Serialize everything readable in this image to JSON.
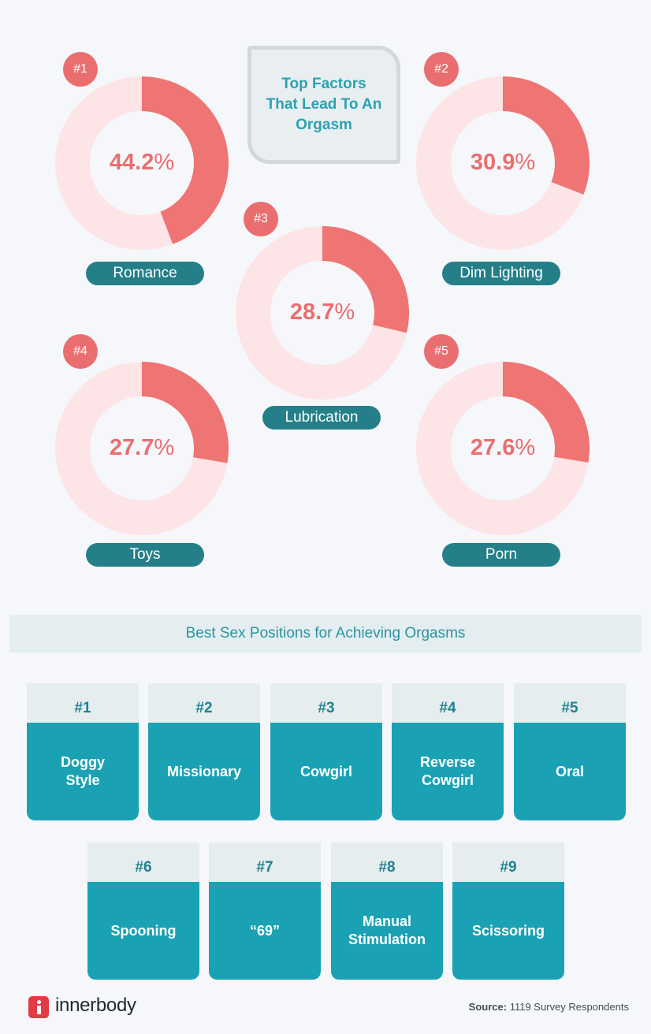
{
  "header": {
    "title": "Top Factors That Lead To An Orgasm"
  },
  "colors": {
    "donut_fill": "#ef7474",
    "donut_track": "#fde4e7",
    "pct_text": "#ea6e70",
    "pill": "#247f89",
    "position_card": "#1aa2b4"
  },
  "chart_data": [
    {
      "type": "pie",
      "title": "Top Factors That Lead To An Orgasm",
      "series": [
        {
          "rank": "#1",
          "name": "Romance",
          "value": 44.2,
          "pct_label": "44.2"
        },
        {
          "rank": "#2",
          "name": "Dim Lighting",
          "value": 30.9,
          "pct_label": "30.9"
        },
        {
          "rank": "#3",
          "name": "Lubrication",
          "value": 28.7,
          "pct_label": "28.7"
        },
        {
          "rank": "#4",
          "name": "Toys",
          "value": 27.7,
          "pct_label": "27.7"
        },
        {
          "rank": "#5",
          "name": "Porn",
          "value": 27.6,
          "pct_label": "27.6"
        }
      ],
      "unit": "%"
    },
    {
      "type": "table",
      "title": "Best Sex Positions for Achieving Orgasms",
      "rows": [
        {
          "rank": "#1",
          "name": "Doggy\nStyle"
        },
        {
          "rank": "#2",
          "name": "Missionary"
        },
        {
          "rank": "#3",
          "name": "Cowgirl"
        },
        {
          "rank": "#4",
          "name": "Reverse\nCowgirl"
        },
        {
          "rank": "#5",
          "name": "Oral"
        },
        {
          "rank": "#6",
          "name": "Spooning"
        },
        {
          "rank": "#7",
          "name": "“69”"
        },
        {
          "rank": "#8",
          "name": "Manual\nStimulation"
        },
        {
          "rank": "#9",
          "name": "Scissoring"
        }
      ]
    }
  ],
  "positions": {
    "heading": "Best Sex Positions for Achieving Orgasms"
  },
  "footer": {
    "logo_text": "innerbody",
    "logo_icon": "info-i-icon",
    "source_label": "Source:",
    "source_text": "1119 Survey Respondents"
  }
}
